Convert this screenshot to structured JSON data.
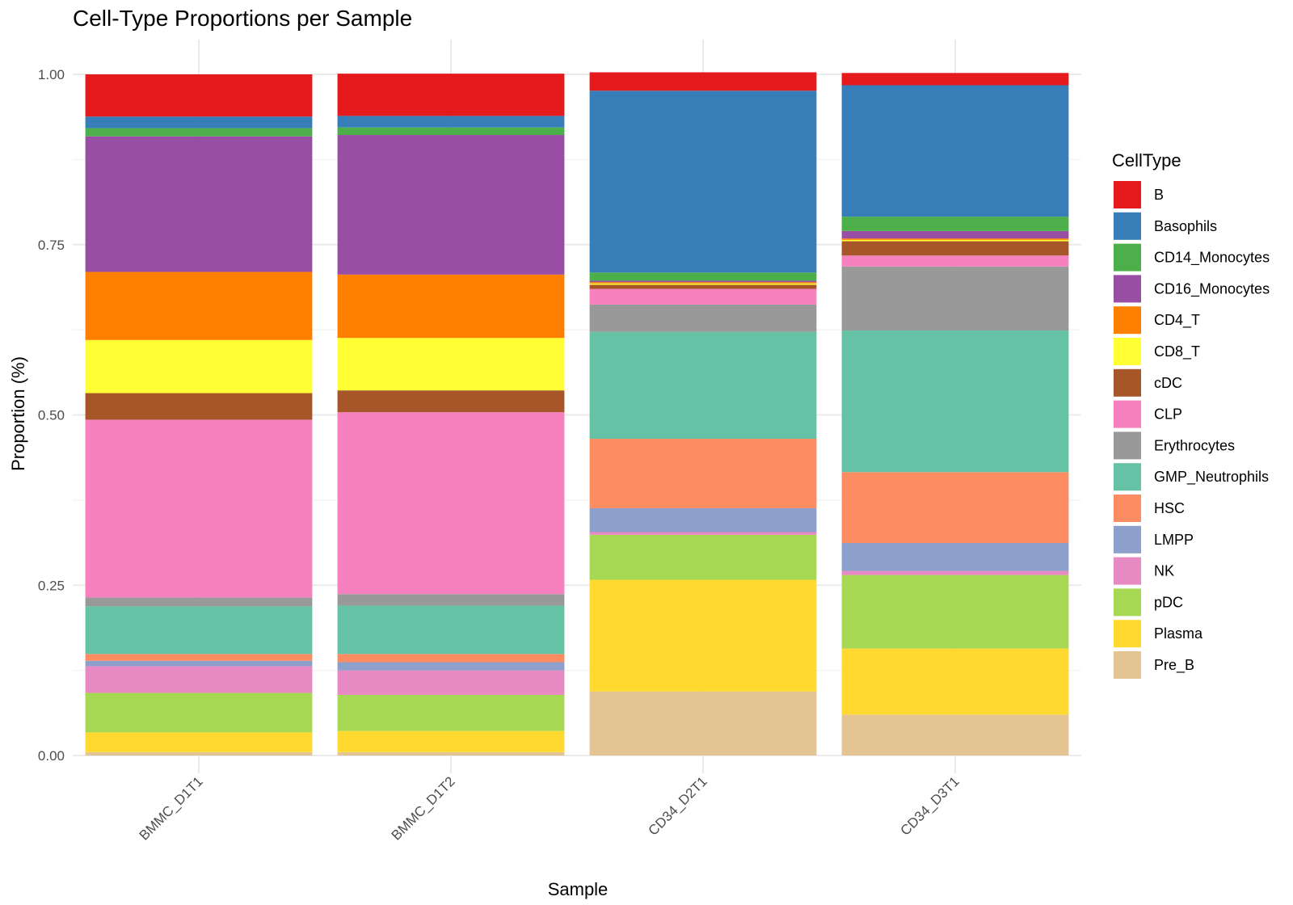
{
  "chart_data": {
    "type": "bar",
    "stacked": true,
    "title": "Cell-Type Proportions per Sample",
    "xlabel": "Sample",
    "ylabel": "Proportion (%)",
    "ylim": [
      0,
      1
    ],
    "yticks": [
      "0.00",
      "0.25",
      "0.50",
      "0.75",
      "1.00"
    ],
    "grid": true,
    "legend_title": "CellType",
    "legend_position": "right",
    "categories": [
      "BMMC_D1T1",
      "BMMC_D1T2",
      "CD34_D2T1",
      "CD34_D3T1"
    ],
    "series": [
      {
        "name": "B",
        "color": "#E41A1C",
        "values": [
          0.062,
          0.062,
          0.027,
          0.018
        ]
      },
      {
        "name": "Basophils",
        "color": "#377EB8",
        "values": [
          0.017,
          0.017,
          0.267,
          0.193
        ]
      },
      {
        "name": "CD14_Monocytes",
        "color": "#4DAF4A",
        "values": [
          0.012,
          0.011,
          0.012,
          0.021
        ]
      },
      {
        "name": "CD16_Monocytes",
        "color": "#984EA3",
        "values": [
          0.199,
          0.205,
          0.002,
          0.011
        ]
      },
      {
        "name": "CD4_T",
        "color": "#FF7F00",
        "values": [
          0.1,
          0.093,
          0.002,
          0.002
        ]
      },
      {
        "name": "CD8_T",
        "color": "#FFFF33",
        "values": [
          0.078,
          0.077,
          0.002,
          0.002
        ]
      },
      {
        "name": "cDC",
        "color": "#A65628",
        "values": [
          0.039,
          0.032,
          0.006,
          0.021
        ]
      },
      {
        "name": "CLP",
        "color": "#F781BF",
        "values": [
          0.261,
          0.267,
          0.023,
          0.016
        ]
      },
      {
        "name": "Erythrocytes",
        "color": "#999999",
        "values": [
          0.013,
          0.017,
          0.04,
          0.094
        ]
      },
      {
        "name": "GMP_Neutrophils",
        "color": "#66C2A5",
        "values": [
          0.07,
          0.071,
          0.157,
          0.208
        ]
      },
      {
        "name": "HSC",
        "color": "#FC8D62",
        "values": [
          0.01,
          0.012,
          0.102,
          0.104
        ]
      },
      {
        "name": "LMPP",
        "color": "#8DA0CB",
        "values": [
          0.008,
          0.012,
          0.035,
          0.041
        ]
      },
      {
        "name": "NK",
        "color": "#E78AC3",
        "values": [
          0.039,
          0.036,
          0.004,
          0.006
        ]
      },
      {
        "name": "pDC",
        "color": "#A6D854",
        "values": [
          0.058,
          0.053,
          0.066,
          0.108
        ]
      },
      {
        "name": "Plasma",
        "color": "#FFD92F",
        "values": [
          0.029,
          0.031,
          0.164,
          0.097
        ]
      },
      {
        "name": "Pre_B",
        "color": "#E5C494",
        "values": [
          0.005,
          0.005,
          0.094,
          0.06
        ]
      }
    ]
  }
}
